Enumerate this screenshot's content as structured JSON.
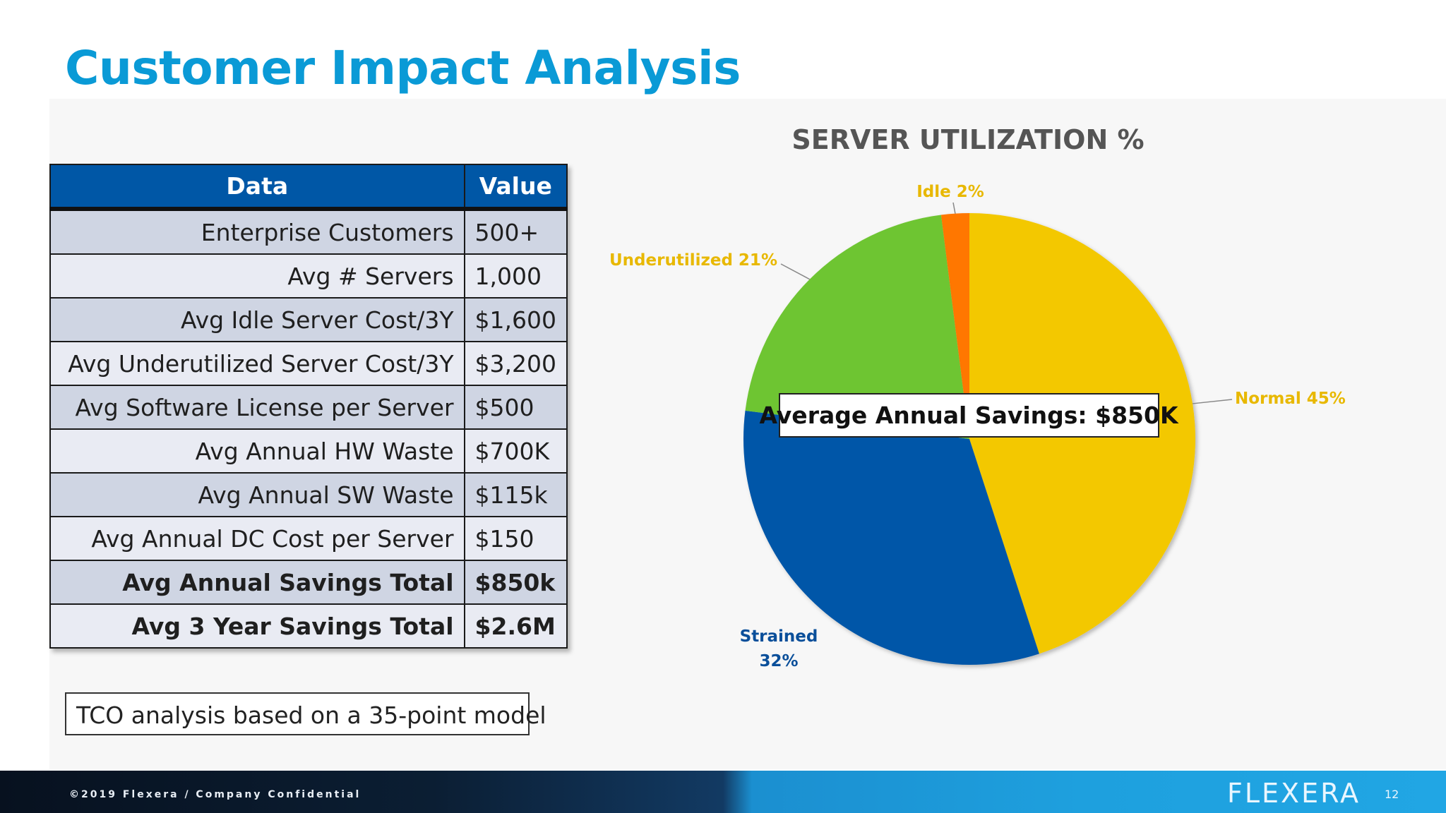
{
  "slide": {
    "title": "Customer Impact Analysis",
    "note": "TCO analysis based on a 35-point model",
    "footer": "©2019 Flexera / Company Confidential",
    "logo": "FLEXERA",
    "page_number": "12"
  },
  "table": {
    "headers": [
      "Data",
      "Value"
    ],
    "rows": [
      {
        "label": "Enterprise Customers",
        "value": "500+"
      },
      {
        "label": "Avg # Servers",
        "value": "1,000"
      },
      {
        "label": "Avg Idle Server Cost/3Y",
        "value": "$1,600"
      },
      {
        "label": "Avg Underutilized Server Cost/3Y",
        "value": "$3,200"
      },
      {
        "label": "Avg Software License per Server",
        "value": "$500"
      },
      {
        "label": "Avg Annual HW Waste",
        "value": "$700K"
      },
      {
        "label": "Avg Annual SW Waste",
        "value": "$115k"
      },
      {
        "label": "Avg Annual DC Cost per Server",
        "value": "$150"
      },
      {
        "label": "Avg Annual Savings Total",
        "value": "$850k"
      },
      {
        "label": "Avg 3 Year Savings Total",
        "value": "$2.6M"
      }
    ]
  },
  "chart_data": {
    "type": "pie",
    "title": "SERVER UTILIZATION %",
    "callout": "Average Annual Savings: $850K",
    "slices": [
      {
        "label": "Normal",
        "value": 45,
        "display": "Normal 45%",
        "color": "#f3c800",
        "label_color": "#e8b800"
      },
      {
        "label": "Strained",
        "value": 32,
        "display_line1": "Strained",
        "display_line2": "32%",
        "color": "#0057a8",
        "label_color": "#0a4f9a"
      },
      {
        "label": "Underutilized",
        "value": 21,
        "display": "Underutilized 21%",
        "color": "#6ec531",
        "label_color": "#e8b800"
      },
      {
        "label": "Idle",
        "value": 2,
        "display": "Idle 2%",
        "color": "#ff7700",
        "label_color": "#e8b800"
      }
    ]
  }
}
